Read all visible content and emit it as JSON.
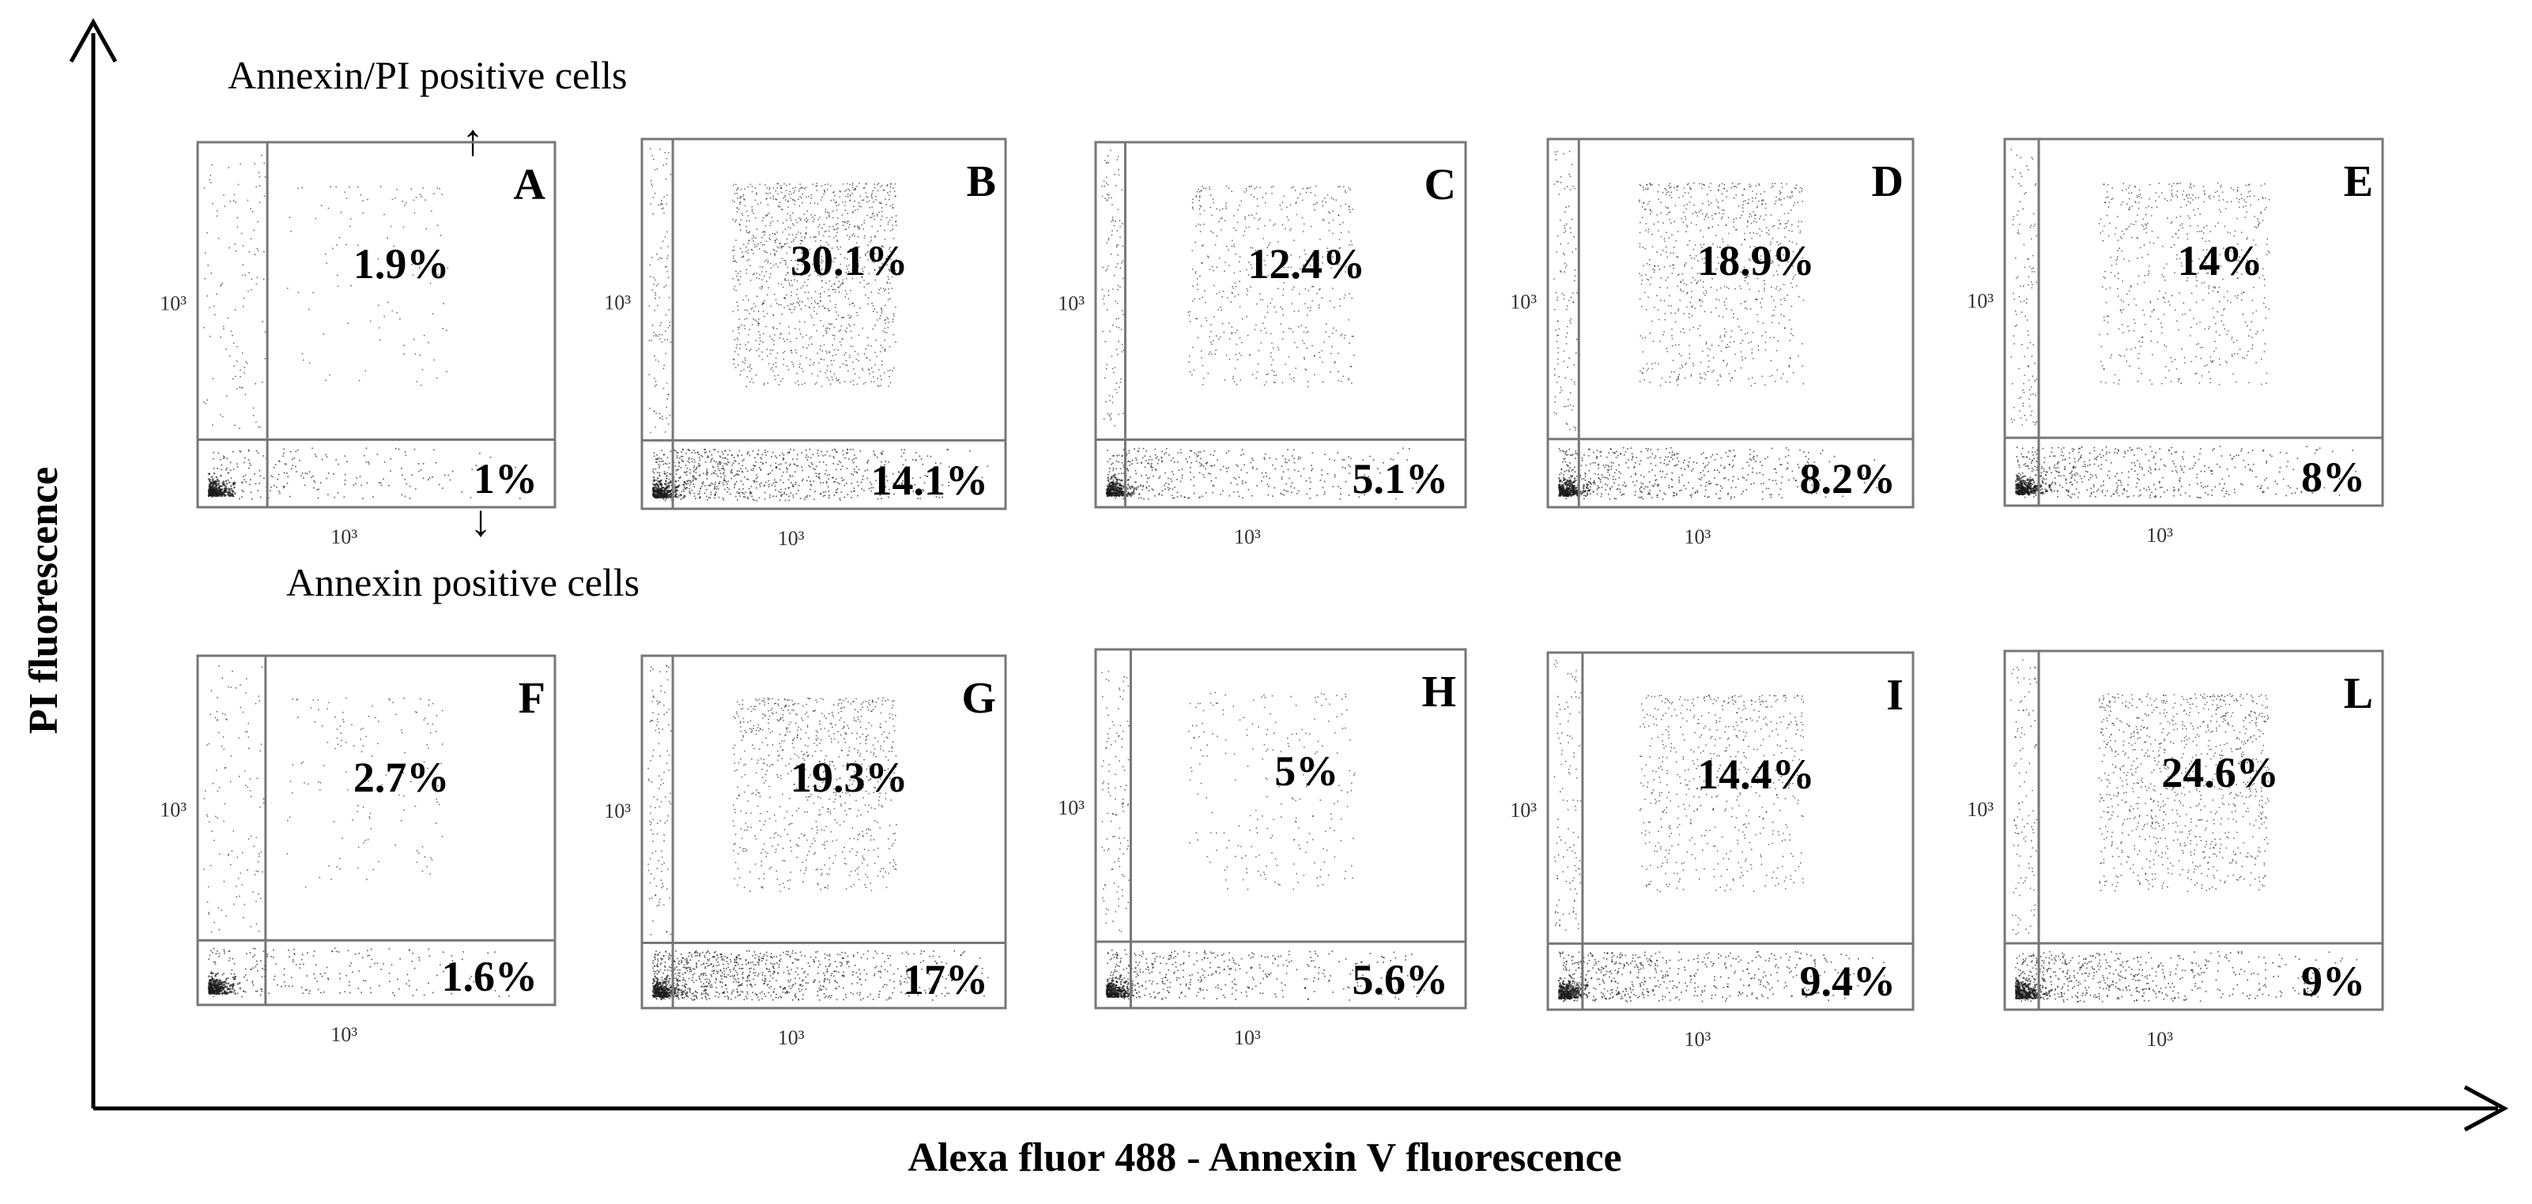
{
  "figure": {
    "x_axis_label": "Alexa fluor 488 - Annexin V fluorescence",
    "y_axis_label": "PI fluorescence",
    "annotation_top": "Annexin/PI positive cells",
    "annotation_bottom": "Annexin positive cells",
    "arrow_up_glyph": "↑",
    "arrow_down_glyph": "↓"
  },
  "chart_data": {
    "type": "scatter",
    "subtype": "flow-cytometry dot plots (quadrant gating)",
    "x_axis": "Alexa fluor 488 - Annexin V fluorescence",
    "y_axis": "PI fluorescence",
    "tick_label": "10³",
    "panels": [
      {
        "id": "A",
        "annexin_pi_positive_label": "1.9%",
        "annexin_pi_positive": 1.9,
        "annexin_positive_label": "1%",
        "annexin_positive": 1.0
      },
      {
        "id": "B",
        "annexin_pi_positive_label": "30.1%",
        "annexin_pi_positive": 30.1,
        "annexin_positive_label": "14.1%",
        "annexin_positive": 14.1
      },
      {
        "id": "C",
        "annexin_pi_positive_label": "12.4%",
        "annexin_pi_positive": 12.4,
        "annexin_positive_label": "5.1%",
        "annexin_positive": 5.1
      },
      {
        "id": "D",
        "annexin_pi_positive_label": "18.9%",
        "annexin_pi_positive": 18.9,
        "annexin_positive_label": "8.2%",
        "annexin_positive": 8.2
      },
      {
        "id": "E",
        "annexin_pi_positive_label": "14%",
        "annexin_pi_positive": 14.0,
        "annexin_positive_label": "8%",
        "annexin_positive": 8.0
      },
      {
        "id": "F",
        "annexin_pi_positive_label": "2.7%",
        "annexin_pi_positive": 2.7,
        "annexin_positive_label": "1.6%",
        "annexin_positive": 1.6
      },
      {
        "id": "G",
        "annexin_pi_positive_label": "19.3%",
        "annexin_pi_positive": 19.3,
        "annexin_positive_label": "17%",
        "annexin_positive": 17.0
      },
      {
        "id": "H",
        "annexin_pi_positive_label": "5%",
        "annexin_pi_positive": 5.0,
        "annexin_positive_label": "5.6%",
        "annexin_positive": 5.6
      },
      {
        "id": "I",
        "annexin_pi_positive_label": "14.4%",
        "annexin_pi_positive": 14.4,
        "annexin_positive_label": "9.4%",
        "annexin_positive": 9.4
      },
      {
        "id": "L",
        "annexin_pi_positive_label": "24.6%",
        "annexin_pi_positive": 24.6,
        "annexin_positive_label": "9%",
        "annexin_positive": 9.0
      }
    ]
  }
}
